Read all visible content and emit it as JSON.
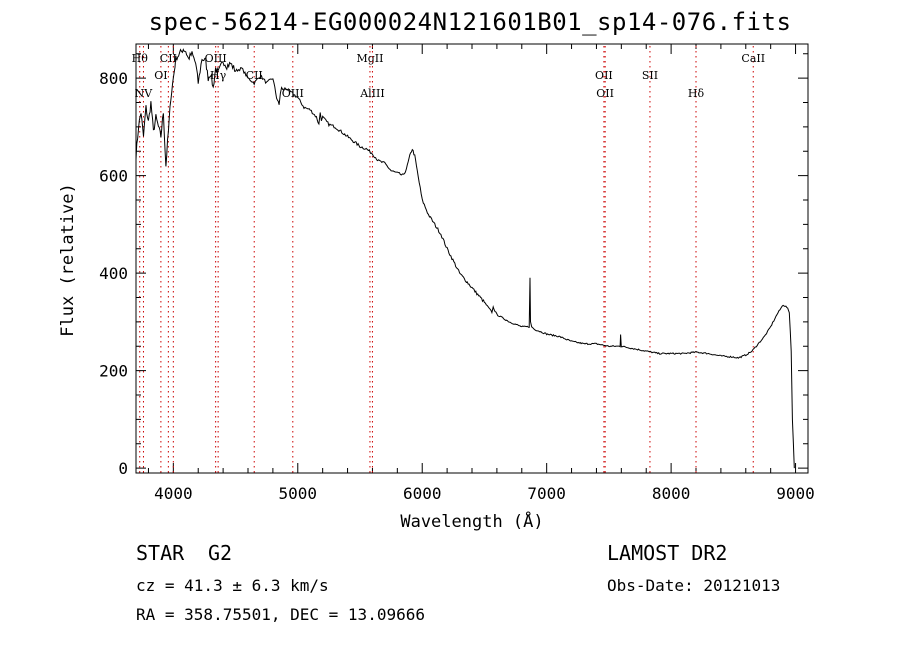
{
  "chart_data": {
    "type": "line",
    "title": "spec-56214-EG000024N121601B01_sp14-076.fits",
    "xlabel": "Wavelength (Å)",
    "ylabel": "Flux (relative)",
    "xlim": [
      3700,
      9100
    ],
    "ylim": [
      -10,
      870
    ],
    "x_ticks": [
      4000,
      5000,
      6000,
      7000,
      8000,
      9000
    ],
    "y_ticks": [
      0,
      200,
      400,
      600,
      800
    ],
    "grid": false,
    "series": [
      {
        "x": [
          3700,
          3720,
          3740,
          3760,
          3780,
          3800,
          3820,
          3840,
          3860,
          3880,
          3900,
          3920,
          3940,
          3960,
          3980,
          4000,
          4020,
          4050,
          4080,
          4100,
          4120,
          4150,
          4180,
          4200,
          4230,
          4260,
          4280,
          4300,
          4320,
          4340,
          4360,
          4400,
          4430,
          4460,
          4500,
          4550,
          4600,
          4650,
          4700,
          4750,
          4800,
          4830,
          4850,
          4860,
          4870,
          4880,
          4900,
          4950,
          5000,
          5050,
          5100,
          5150,
          5170,
          5180,
          5190,
          5200,
          5250,
          5300,
          5400,
          5500,
          5550,
          5600,
          5650,
          5700,
          5750,
          5800,
          5850,
          5880,
          5900,
          5920,
          5940,
          5960,
          6000,
          6050,
          6100,
          6150,
          6200,
          6300,
          6400,
          6500,
          6560,
          6570,
          6600,
          6700,
          6800,
          6860,
          6866,
          6870,
          6880,
          6900,
          7000,
          7100,
          7200,
          7300,
          7400,
          7500,
          7590,
          7594,
          7600,
          7700,
          7800,
          7900,
          8000,
          8100,
          8200,
          8300,
          8400,
          8500,
          8540,
          8600,
          8650,
          8700,
          8750,
          8800,
          8850,
          8900,
          8930,
          8950,
          8965,
          8975,
          8990
        ],
        "y": [
          640,
          700,
          730,
          680,
          740,
          710,
          750,
          690,
          720,
          700,
          680,
          730,
          620,
          690,
          760,
          800,
          840,
          850,
          860,
          855,
          840,
          850,
          830,
          790,
          840,
          835,
          800,
          810,
          780,
          820,
          810,
          835,
          825,
          830,
          815,
          820,
          800,
          790,
          805,
          790,
          800,
          760,
          745,
          770,
          780,
          775,
          780,
          770,
          760,
          740,
          735,
          720,
          705,
          730,
          715,
          720,
          705,
          700,
          680,
          660,
          655,
          645,
          630,
          625,
          610,
          605,
          600,
          620,
          640,
          655,
          640,
          610,
          550,
          520,
          500,
          480,
          450,
          400,
          370,
          340,
          320,
          330,
          315,
          300,
          290,
          290,
          390,
          300,
          290,
          285,
          275,
          270,
          260,
          255,
          255,
          250,
          250,
          275,
          250,
          245,
          240,
          235,
          235,
          235,
          238,
          235,
          230,
          228,
          226,
          232,
          240,
          255,
          270,
          290,
          315,
          335,
          330,
          320,
          240,
          100,
          0
        ]
      }
    ],
    "lines": [
      {
        "x": 3730,
        "label": "Hθ",
        "row": 1
      },
      {
        "x": 3760,
        "label": "NV",
        "row": 3
      },
      {
        "x": 3900,
        "label": "OI",
        "row": 2
      },
      {
        "x": 3960,
        "label": "CII",
        "row": 1
      },
      {
        "x": 4000,
        "label": "",
        "row": 0
      },
      {
        "x": 4340,
        "label": "OIII",
        "row": 1
      },
      {
        "x": 4360,
        "label": "Hγ",
        "row": 2
      },
      {
        "x": 4650,
        "label": "CII",
        "row": 2
      },
      {
        "x": 4960,
        "label": "OIII",
        "row": 3
      },
      {
        "x": 5580,
        "label": "MgII",
        "row": 1
      },
      {
        "x": 5600,
        "label": "AlIII",
        "row": 3
      },
      {
        "x": 7460,
        "label": "OII",
        "row": 2
      },
      {
        "x": 7470,
        "label": "OII",
        "row": 3
      },
      {
        "x": 7830,
        "label": "SII",
        "row": 2
      },
      {
        "x": 8200,
        "label": "Hδ",
        "row": 3
      },
      {
        "x": 8660,
        "label": "CaII",
        "row": 1
      }
    ],
    "line_color": "#cc0000"
  },
  "footer": {
    "class_label": "STAR",
    "subclass": "G2",
    "survey": "LAMOST DR2",
    "cz": "cz = 41.3 ± 6.3 km/s",
    "obs_date": "Obs-Date: 20121013",
    "coords": "RA = 358.75501, DEC =  13.09666"
  }
}
